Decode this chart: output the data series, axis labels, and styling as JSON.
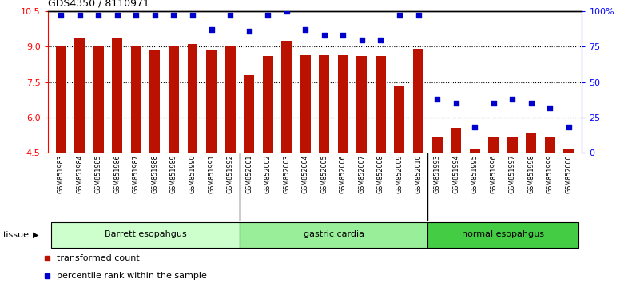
{
  "title": "GDS4350 / 8110971",
  "samples": [
    "GSM851983",
    "GSM851984",
    "GSM851985",
    "GSM851986",
    "GSM851987",
    "GSM851988",
    "GSM851989",
    "GSM851990",
    "GSM851991",
    "GSM851992",
    "GSM852001",
    "GSM852002",
    "GSM852003",
    "GSM852004",
    "GSM852005",
    "GSM852006",
    "GSM852007",
    "GSM852008",
    "GSM852009",
    "GSM852010",
    "GSM851993",
    "GSM851994",
    "GSM851995",
    "GSM851996",
    "GSM851997",
    "GSM851998",
    "GSM851999",
    "GSM852000"
  ],
  "bar_values": [
    9.0,
    9.35,
    9.0,
    9.35,
    9.0,
    8.85,
    9.05,
    9.1,
    8.85,
    9.05,
    7.8,
    8.6,
    9.25,
    8.65,
    8.65,
    8.65,
    8.6,
    8.6,
    7.35,
    8.9,
    5.2,
    5.55,
    4.65,
    5.2,
    5.2,
    5.35,
    5.2,
    4.65
  ],
  "percentile_values": [
    97,
    97,
    97,
    97,
    97,
    97,
    97,
    97,
    87,
    97,
    86,
    97,
    100,
    87,
    83,
    83,
    80,
    80,
    97,
    97,
    38,
    35,
    18,
    35,
    38,
    35,
    32,
    18
  ],
  "groups": [
    {
      "label": "Barrett esopahgus",
      "start": 0,
      "end": 10,
      "color": "#ccffcc"
    },
    {
      "label": "gastric cardia",
      "start": 10,
      "end": 20,
      "color": "#99ee99"
    },
    {
      "label": "normal esopahgus",
      "start": 20,
      "end": 28,
      "color": "#44cc44"
    }
  ],
  "ylim_left": [
    4.5,
    10.5
  ],
  "ylim_right": [
    0,
    100
  ],
  "yticks_left": [
    4.5,
    6.0,
    7.5,
    9.0,
    10.5
  ],
  "yticks_right_vals": [
    0,
    25,
    50,
    75,
    100
  ],
  "yticks_right_labels": [
    "0",
    "25",
    "50",
    "75",
    "100%"
  ],
  "bar_color": "#bb1100",
  "dot_color": "#0000cc",
  "bar_width": 0.55,
  "bar_bottom": 4.5,
  "legend": [
    {
      "color": "#bb1100",
      "label": "transformed count"
    },
    {
      "color": "#0000cc",
      "label": "percentile rank within the sample"
    }
  ],
  "tissue_label": "tissue",
  "grid_lines": [
    6.0,
    7.5,
    9.0
  ],
  "group_dividers": [
    10,
    20
  ]
}
